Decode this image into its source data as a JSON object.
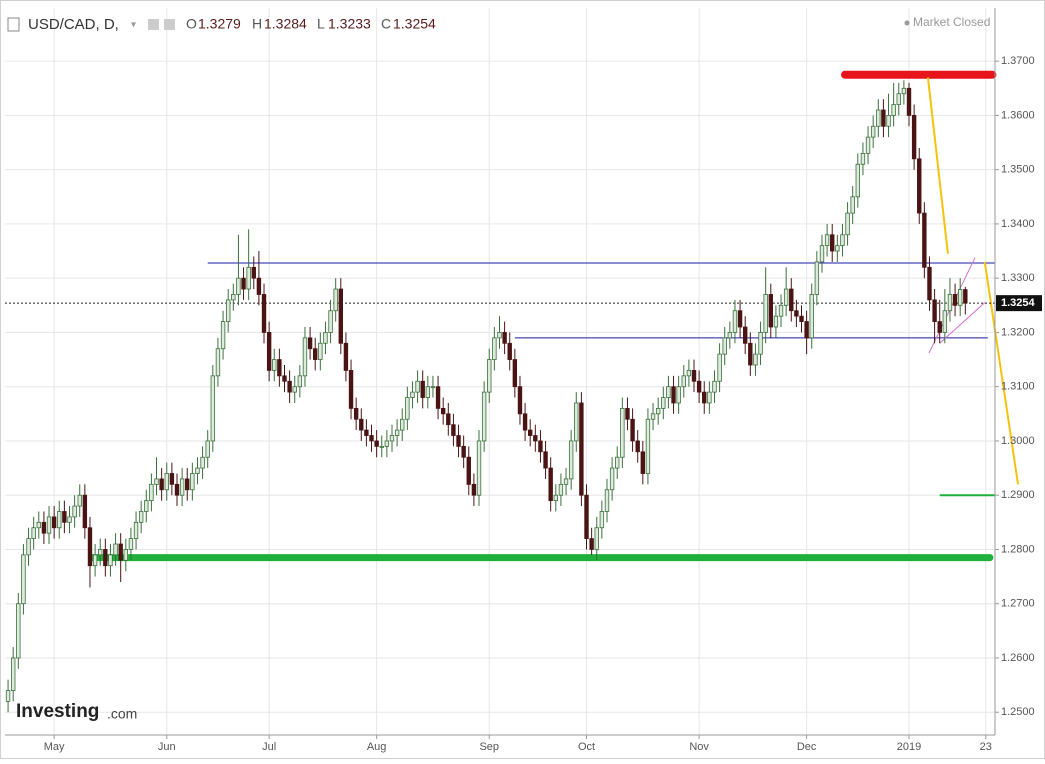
{
  "chart_data": {
    "type": "candlestick",
    "symbol": "USD/CAD, D,",
    "open_label": "O",
    "high_label": "H",
    "low_label": "L",
    "close_label": "C",
    "market_status": "Market Closed",
    "logo": "Investing",
    "logo_suffix": ".com",
    "up_color": "#dcebdc",
    "up_edge": "#3b6e3b",
    "down_color": "#4a1414",
    "grid": true,
    "ylim": [
      1.2458,
      1.3798
    ],
    "yticks": [
      {
        "value": 1.25,
        "label": "1.2500"
      },
      {
        "value": 1.26,
        "label": "1.2600"
      },
      {
        "value": 1.27,
        "label": "1.2700"
      },
      {
        "value": 1.28,
        "label": "1.2800"
      },
      {
        "value": 1.29,
        "label": "1.2900"
      },
      {
        "value": 1.3,
        "label": "1.3000"
      },
      {
        "value": 1.31,
        "label": "1.3100"
      },
      {
        "value": 1.32,
        "label": "1.3200"
      },
      {
        "value": 1.33,
        "label": "1.3300"
      },
      {
        "value": 1.34,
        "label": "1.3400"
      },
      {
        "value": 1.35,
        "label": "1.3500"
      },
      {
        "value": 1.36,
        "label": "1.3600"
      },
      {
        "value": 1.37,
        "label": "1.3700"
      }
    ],
    "xlim": [
      -0.6,
      192.8
    ],
    "xticks": [
      {
        "value": 9,
        "label": "May"
      },
      {
        "value": 31,
        "label": "Jun"
      },
      {
        "value": 51,
        "label": "Jul"
      },
      {
        "value": 72,
        "label": "Aug"
      },
      {
        "value": 94,
        "label": "Sep"
      },
      {
        "value": 113,
        "label": "Oct"
      },
      {
        "value": 135,
        "label": "Nov"
      },
      {
        "value": 156,
        "label": "Dec"
      },
      {
        "value": 176,
        "label": "2019"
      },
      {
        "value": 191,
        "label": "23"
      }
    ],
    "ohlc": [
      [
        1.252,
        1.256,
        1.25,
        1.254
      ],
      [
        1.254,
        1.262,
        1.252,
        1.26
      ],
      [
        1.26,
        1.272,
        1.258,
        1.27
      ],
      [
        1.27,
        1.281,
        1.268,
        1.279
      ],
      [
        1.279,
        1.284,
        1.277,
        1.282
      ],
      [
        1.282,
        1.286,
        1.28,
        1.284
      ],
      [
        1.284,
        1.287,
        1.282,
        1.285
      ],
      [
        1.285,
        1.287,
        1.281,
        1.283
      ],
      [
        1.283,
        1.288,
        1.281,
        1.286
      ],
      [
        1.286,
        1.288,
        1.282,
        1.284
      ],
      [
        1.284,
        1.289,
        1.282,
        1.287
      ],
      [
        1.287,
        1.289,
        1.283,
        1.285
      ],
      [
        1.285,
        1.288,
        1.283,
        1.286
      ],
      [
        1.286,
        1.29,
        1.284,
        1.288
      ],
      [
        1.288,
        1.292,
        1.286,
        1.29
      ],
      [
        1.29,
        1.292,
        1.282,
        1.284
      ],
      [
        1.284,
        1.286,
        1.273,
        1.277
      ],
      [
        1.277,
        1.281,
        1.275,
        1.279
      ],
      [
        1.279,
        1.282,
        1.277,
        1.28
      ],
      [
        1.28,
        1.282,
        1.275,
        1.277
      ],
      [
        1.277,
        1.281,
        1.275,
        1.279
      ],
      [
        1.279,
        1.283,
        1.277,
        1.281
      ],
      [
        1.281,
        1.283,
        1.274,
        1.278
      ],
      [
        1.278,
        1.282,
        1.276,
        1.28
      ],
      [
        1.28,
        1.284,
        1.278,
        1.282
      ],
      [
        1.282,
        1.287,
        1.28,
        1.285
      ],
      [
        1.285,
        1.289,
        1.283,
        1.287
      ],
      [
        1.287,
        1.291,
        1.285,
        1.289
      ],
      [
        1.289,
        1.294,
        1.287,
        1.292
      ],
      [
        1.292,
        1.297,
        1.29,
        1.293
      ],
      [
        1.293,
        1.295,
        1.289,
        1.291
      ],
      [
        1.291,
        1.296,
        1.289,
        1.294
      ],
      [
        1.294,
        1.296,
        1.29,
        1.292
      ],
      [
        1.292,
        1.294,
        1.288,
        1.29
      ],
      [
        1.29,
        1.295,
        1.288,
        1.293
      ],
      [
        1.293,
        1.295,
        1.289,
        1.291
      ],
      [
        1.291,
        1.296,
        1.289,
        1.294
      ],
      [
        1.294,
        1.297,
        1.292,
        1.295
      ],
      [
        1.295,
        1.299,
        1.293,
        1.297
      ],
      [
        1.297,
        1.302,
        1.295,
        1.3
      ],
      [
        1.3,
        1.314,
        1.298,
        1.312
      ],
      [
        1.312,
        1.319,
        1.31,
        1.317
      ],
      [
        1.317,
        1.324,
        1.315,
        1.322
      ],
      [
        1.322,
        1.328,
        1.32,
        1.326
      ],
      [
        1.326,
        1.329,
        1.324,
        1.327
      ],
      [
        1.327,
        1.338,
        1.325,
        1.33
      ],
      [
        1.33,
        1.332,
        1.326,
        1.328
      ],
      [
        1.328,
        1.339,
        1.326,
        1.332
      ],
      [
        1.332,
        1.334,
        1.328,
        1.33
      ],
      [
        1.33,
        1.335,
        1.325,
        1.327
      ],
      [
        1.327,
        1.329,
        1.318,
        1.32
      ],
      [
        1.32,
        1.322,
        1.311,
        1.313
      ],
      [
        1.313,
        1.317,
        1.311,
        1.315
      ],
      [
        1.315,
        1.317,
        1.31,
        1.312
      ],
      [
        1.312,
        1.314,
        1.309,
        1.311
      ],
      [
        1.311,
        1.313,
        1.307,
        1.309
      ],
      [
        1.309,
        1.312,
        1.307,
        1.31
      ],
      [
        1.31,
        1.314,
        1.308,
        1.312
      ],
      [
        1.312,
        1.321,
        1.31,
        1.319
      ],
      [
        1.319,
        1.321,
        1.315,
        1.317
      ],
      [
        1.317,
        1.319,
        1.313,
        1.315
      ],
      [
        1.315,
        1.32,
        1.313,
        1.318
      ],
      [
        1.318,
        1.322,
        1.316,
        1.32
      ],
      [
        1.32,
        1.326,
        1.318,
        1.324
      ],
      [
        1.324,
        1.33,
        1.322,
        1.328
      ],
      [
        1.328,
        1.33,
        1.316,
        1.318
      ],
      [
        1.318,
        1.32,
        1.311,
        1.313
      ],
      [
        1.313,
        1.315,
        1.304,
        1.306
      ],
      [
        1.306,
        1.308,
        1.302,
        1.304
      ],
      [
        1.304,
        1.306,
        1.3,
        1.302
      ],
      [
        1.302,
        1.304,
        1.299,
        1.301
      ],
      [
        1.301,
        1.303,
        1.298,
        1.3
      ],
      [
        1.3,
        1.302,
        1.297,
        1.299
      ],
      [
        1.299,
        1.301,
        1.297,
        1.299
      ],
      [
        1.299,
        1.302,
        1.297,
        1.3
      ],
      [
        1.3,
        1.303,
        1.298,
        1.301
      ],
      [
        1.301,
        1.304,
        1.299,
        1.302
      ],
      [
        1.302,
        1.306,
        1.3,
        1.304
      ],
      [
        1.304,
        1.31,
        1.302,
        1.308
      ],
      [
        1.308,
        1.311,
        1.306,
        1.309
      ],
      [
        1.309,
        1.313,
        1.307,
        1.311
      ],
      [
        1.311,
        1.313,
        1.306,
        1.308
      ],
      [
        1.308,
        1.312,
        1.306,
        1.31
      ],
      [
        1.31,
        1.312,
        1.308,
        1.31
      ],
      [
        1.31,
        1.312,
        1.304,
        1.306
      ],
      [
        1.306,
        1.308,
        1.303,
        1.305
      ],
      [
        1.305,
        1.307,
        1.301,
        1.303
      ],
      [
        1.303,
        1.305,
        1.299,
        1.301
      ],
      [
        1.301,
        1.303,
        1.297,
        1.299
      ],
      [
        1.299,
        1.301,
        1.295,
        1.297
      ],
      [
        1.297,
        1.299,
        1.29,
        1.292
      ],
      [
        1.292,
        1.294,
        1.288,
        1.29
      ],
      [
        1.29,
        1.302,
        1.288,
        1.3
      ],
      [
        1.3,
        1.311,
        1.298,
        1.309
      ],
      [
        1.309,
        1.317,
        1.307,
        1.315
      ],
      [
        1.315,
        1.321,
        1.313,
        1.319
      ],
      [
        1.319,
        1.323,
        1.317,
        1.32
      ],
      [
        1.32,
        1.322,
        1.316,
        1.318
      ],
      [
        1.318,
        1.32,
        1.313,
        1.315
      ],
      [
        1.315,
        1.317,
        1.308,
        1.31
      ],
      [
        1.31,
        1.312,
        1.303,
        1.305
      ],
      [
        1.305,
        1.307,
        1.3,
        1.302
      ],
      [
        1.302,
        1.304,
        1.299,
        1.301
      ],
      [
        1.301,
        1.303,
        1.298,
        1.3
      ],
      [
        1.3,
        1.302,
        1.296,
        1.298
      ],
      [
        1.298,
        1.3,
        1.293,
        1.295
      ],
      [
        1.295,
        1.297,
        1.287,
        1.289
      ],
      [
        1.289,
        1.292,
        1.287,
        1.29
      ],
      [
        1.29,
        1.294,
        1.288,
        1.292
      ],
      [
        1.292,
        1.295,
        1.29,
        1.293
      ],
      [
        1.293,
        1.302,
        1.291,
        1.3
      ],
      [
        1.3,
        1.309,
        1.298,
        1.307
      ],
      [
        1.307,
        1.309,
        1.288,
        1.29
      ],
      [
        1.29,
        1.292,
        1.28,
        1.282
      ],
      [
        1.282,
        1.284,
        1.279,
        1.28
      ],
      [
        1.28,
        1.286,
        1.278,
        1.284
      ],
      [
        1.284,
        1.289,
        1.282,
        1.287
      ],
      [
        1.287,
        1.293,
        1.285,
        1.291
      ],
      [
        1.291,
        1.297,
        1.289,
        1.295
      ],
      [
        1.295,
        1.299,
        1.293,
        1.297
      ],
      [
        1.297,
        1.308,
        1.295,
        1.306
      ],
      [
        1.306,
        1.308,
        1.302,
        1.304
      ],
      [
        1.304,
        1.306,
        1.298,
        1.3
      ],
      [
        1.3,
        1.302,
        1.296,
        1.298
      ],
      [
        1.298,
        1.3,
        1.292,
        1.294
      ],
      [
        1.294,
        1.306,
        1.292,
        1.304
      ],
      [
        1.304,
        1.307,
        1.302,
        1.305
      ],
      [
        1.305,
        1.308,
        1.303,
        1.306
      ],
      [
        1.306,
        1.31,
        1.304,
        1.308
      ],
      [
        1.308,
        1.312,
        1.306,
        1.31
      ],
      [
        1.31,
        1.312,
        1.305,
        1.307
      ],
      [
        1.307,
        1.312,
        1.305,
        1.31
      ],
      [
        1.31,
        1.314,
        1.308,
        1.312
      ],
      [
        1.312,
        1.315,
        1.31,
        1.313
      ],
      [
        1.313,
        1.315,
        1.309,
        1.311
      ],
      [
        1.311,
        1.313,
        1.307,
        1.309
      ],
      [
        1.309,
        1.311,
        1.305,
        1.307
      ],
      [
        1.307,
        1.311,
        1.305,
        1.309
      ],
      [
        1.309,
        1.313,
        1.307,
        1.311
      ],
      [
        1.311,
        1.318,
        1.309,
        1.316
      ],
      [
        1.316,
        1.321,
        1.314,
        1.319
      ],
      [
        1.319,
        1.322,
        1.317,
        1.32
      ],
      [
        1.32,
        1.326,
        1.318,
        1.324
      ],
      [
        1.324,
        1.326,
        1.319,
        1.321
      ],
      [
        1.321,
        1.323,
        1.316,
        1.318
      ],
      [
        1.318,
        1.32,
        1.312,
        1.314
      ],
      [
        1.314,
        1.318,
        1.312,
        1.316
      ],
      [
        1.316,
        1.322,
        1.314,
        1.32
      ],
      [
        1.32,
        1.332,
        1.318,
        1.327
      ],
      [
        1.327,
        1.329,
        1.319,
        1.321
      ],
      [
        1.321,
        1.325,
        1.319,
        1.323
      ],
      [
        1.323,
        1.327,
        1.321,
        1.325
      ],
      [
        1.325,
        1.332,
        1.323,
        1.328
      ],
      [
        1.328,
        1.33,
        1.322,
        1.324
      ],
      [
        1.324,
        1.326,
        1.321,
        1.323
      ],
      [
        1.323,
        1.325,
        1.32,
        1.322
      ],
      [
        1.322,
        1.324,
        1.316,
        1.319
      ],
      [
        1.319,
        1.329,
        1.317,
        1.327
      ],
      [
        1.327,
        1.335,
        1.325,
        1.333
      ],
      [
        1.333,
        1.338,
        1.331,
        1.336
      ],
      [
        1.336,
        1.34,
        1.334,
        1.338
      ],
      [
        1.338,
        1.34,
        1.333,
        1.335
      ],
      [
        1.335,
        1.338,
        1.333,
        1.336
      ],
      [
        1.336,
        1.34,
        1.334,
        1.338
      ],
      [
        1.338,
        1.344,
        1.336,
        1.342
      ],
      [
        1.342,
        1.347,
        1.34,
        1.345
      ],
      [
        1.345,
        1.353,
        1.343,
        1.351
      ],
      [
        1.351,
        1.355,
        1.349,
        1.353
      ],
      [
        1.353,
        1.358,
        1.351,
        1.356
      ],
      [
        1.356,
        1.36,
        1.354,
        1.358
      ],
      [
        1.358,
        1.363,
        1.356,
        1.361
      ],
      [
        1.361,
        1.363,
        1.356,
        1.358
      ],
      [
        1.358,
        1.364,
        1.356,
        1.36
      ],
      [
        1.36,
        1.366,
        1.358,
        1.362
      ],
      [
        1.362,
        1.366,
        1.36,
        1.364
      ],
      [
        1.364,
        1.3665,
        1.362,
        1.365
      ],
      [
        1.365,
        1.366,
        1.358,
        1.36
      ],
      [
        1.36,
        1.362,
        1.35,
        1.352
      ],
      [
        1.352,
        1.354,
        1.34,
        1.342
      ],
      [
        1.342,
        1.344,
        1.33,
        1.332
      ],
      [
        1.332,
        1.334,
        1.324,
        1.326
      ],
      [
        1.326,
        1.328,
        1.318,
        1.322
      ],
      [
        1.322,
        1.326,
        1.318,
        1.32
      ],
      [
        1.32,
        1.328,
        1.318,
        1.324
      ],
      [
        1.324,
        1.33,
        1.322,
        1.327
      ],
      [
        1.327,
        1.329,
        1.323,
        1.325
      ],
      [
        1.325,
        1.33,
        1.323,
        1.3279
      ],
      [
        1.3279,
        1.3284,
        1.3233,
        1.3254
      ]
    ],
    "drawings": [
      {
        "color": "#1a1aa8",
        "width": 1,
        "points": [
          [
            39,
            1.3328
          ],
          [
            192.8,
            1.3328
          ]
        ]
      },
      {
        "color": "#1a1aa8",
        "width": 1,
        "points": [
          [
            99,
            1.319
          ],
          [
            191.4,
            1.319
          ]
        ]
      },
      {
        "color": "#e8141c",
        "width": 8,
        "points": [
          [
            163.5,
            1.3675
          ],
          [
            192.3,
            1.3675
          ]
        ]
      },
      {
        "color": "#1fb03c",
        "width": 7,
        "points": [
          [
            16.4,
            1.2785
          ],
          [
            191.8,
            1.2785
          ]
        ]
      },
      {
        "color": "#1fb03c",
        "width": 2,
        "points": [
          [
            182,
            1.29
          ],
          [
            192.8,
            1.29
          ]
        ]
      },
      {
        "color": "#f5c20e",
        "width": 2,
        "points": [
          [
            179.7,
            1.367
          ],
          [
            183.6,
            1.3345
          ]
        ]
      },
      {
        "color": "#f5c20e",
        "width": 2,
        "points": [
          [
            190.8,
            1.333
          ],
          [
            197.3,
            1.292
          ]
        ]
      },
      {
        "color": "#d070d0",
        "width": 1,
        "points": [
          [
            179.9,
            1.3162
          ],
          [
            188.9,
            1.3338
          ]
        ]
      },
      {
        "color": "#d070d0",
        "width": 1,
        "points": [
          [
            182,
            1.318
          ],
          [
            190.8,
            1.3255
          ]
        ]
      }
    ]
  }
}
